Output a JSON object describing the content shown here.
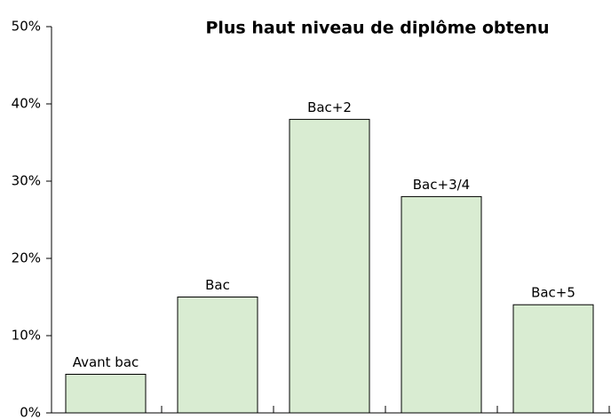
{
  "chart_data": {
    "type": "bar",
    "title": "Plus haut niveau de diplôme obtenu",
    "categories": [
      "Avant bac",
      "Bac",
      "Bac+2",
      "Bac+3/4",
      "Bac+5"
    ],
    "values": [
      5,
      15,
      38,
      28,
      14
    ],
    "color": "#d9ecd2",
    "ylim": [
      0,
      50
    ],
    "yticks": [
      {
        "value": 0,
        "label": "0%"
      },
      {
        "value": 10,
        "label": "10%"
      },
      {
        "value": 20,
        "label": "20%"
      },
      {
        "value": 30,
        "label": "30%"
      },
      {
        "value": 40,
        "label": "40%"
      },
      {
        "value": 50,
        "label": "50%"
      }
    ],
    "grid": false
  }
}
